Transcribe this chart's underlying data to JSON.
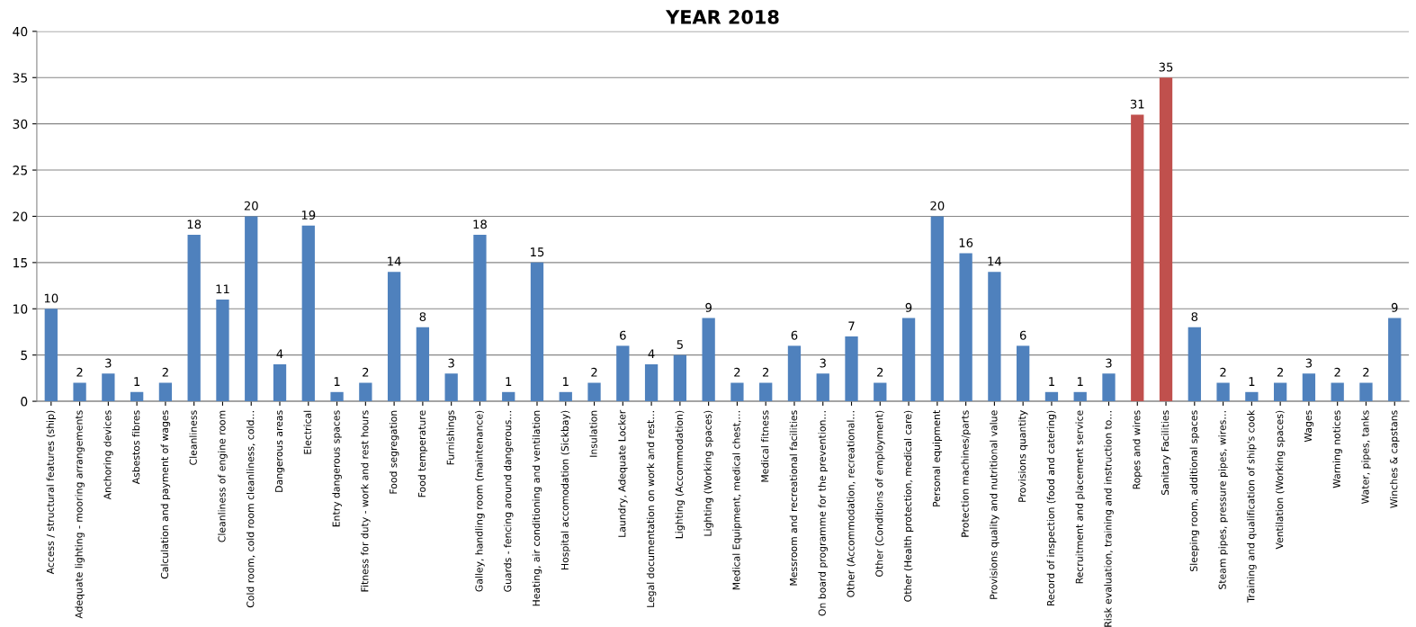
{
  "chart_data": {
    "type": "bar",
    "title": "YEAR 2018",
    "categories": [
      "Access / structural features (ship)",
      "Adequate lighting - mooring arrangements",
      "Anchoring devices",
      "Asbestos fibres",
      "Calculation and payment of wages",
      "Cleanliness",
      "Cleanliness of engine room",
      "Cold room, cold room cleanliness, cold…",
      "Dangerous areas",
      "Electrical",
      "Entry dangerous spaces",
      "Fitness for duty - work and rest hours",
      "Food segregation",
      "Food temperature",
      "Furnishings",
      "Galley, handling room (maintenance)",
      "Guards - fencing around dangerous…",
      "Heating, air conditioning and ventilation",
      "Hospital accomodation (Sickbay)",
      "Insulation",
      "Laundry, Adequate Locker",
      "Legal documentation on work and rest…",
      "Lighting (Accommodation)",
      "Lighting (Working spaces)",
      "Medical Equipment, medical chest,…",
      "Medical fitness",
      "Messroom and recreational facilities",
      "On board programme for the prevention…",
      "Other (Accommodation, recreational…",
      "Other (Conditions of employment)",
      "Other (Health protection, medical care)",
      "Personal equipment",
      "Protection machines/parts",
      "Provisions quality and nutritional value",
      "Provisions quantity",
      "Record of inspection (food and catering)",
      "Recruitment and placement service",
      "Risk evaluation, training and instruction to…",
      "Ropes and wires",
      "Sanitary Facilities",
      "Sleeping room, additional spaces",
      "Steam pipes, pressure pipes, wires…",
      "Training and qualification of ship's cook",
      "Ventilation (Working spaces)",
      "Wages",
      "Warning notices",
      "Water, pipes, tanks",
      "Winches & capstans"
    ],
    "values": [
      10,
      2,
      3,
      1,
      2,
      18,
      11,
      20,
      4,
      19,
      1,
      2,
      14,
      8,
      3,
      18,
      1,
      15,
      1,
      2,
      6,
      4,
      5,
      9,
      2,
      2,
      6,
      3,
      7,
      2,
      9,
      20,
      16,
      14,
      6,
      1,
      1,
      3,
      31,
      35,
      8,
      2,
      1,
      2,
      3,
      2,
      2,
      9
    ],
    "colors": [
      "#4f81bd",
      "#4f81bd",
      "#4f81bd",
      "#4f81bd",
      "#4f81bd",
      "#4f81bd",
      "#4f81bd",
      "#4f81bd",
      "#4f81bd",
      "#4f81bd",
      "#4f81bd",
      "#4f81bd",
      "#4f81bd",
      "#4f81bd",
      "#4f81bd",
      "#4f81bd",
      "#4f81bd",
      "#4f81bd",
      "#4f81bd",
      "#4f81bd",
      "#4f81bd",
      "#4f81bd",
      "#4f81bd",
      "#4f81bd",
      "#4f81bd",
      "#4f81bd",
      "#4f81bd",
      "#4f81bd",
      "#4f81bd",
      "#4f81bd",
      "#4f81bd",
      "#4f81bd",
      "#4f81bd",
      "#4f81bd",
      "#4f81bd",
      "#4f81bd",
      "#4f81bd",
      "#4f81bd",
      "#c0504d",
      "#c0504d",
      "#4f81bd",
      "#4f81bd",
      "#4f81bd",
      "#4f81bd",
      "#4f81bd",
      "#4f81bd",
      "#4f81bd",
      "#4f81bd"
    ],
    "ylim": [
      0,
      40
    ],
    "yticks": [
      0,
      5,
      10,
      15,
      20,
      25,
      30,
      35,
      40
    ],
    "grid": "y",
    "data_labels": true
  }
}
